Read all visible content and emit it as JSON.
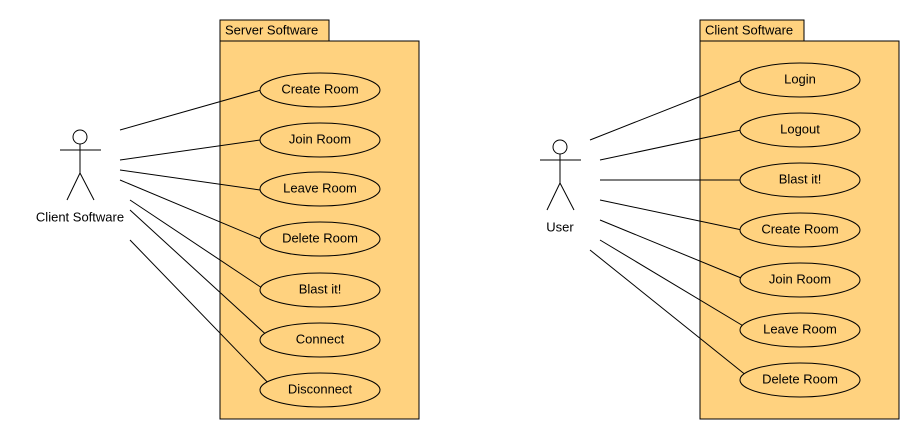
{
  "colors": {
    "boundary_fill": "#FFD27F",
    "usecase_fill": "#FFD27F",
    "stroke": "#000000",
    "background": "#FFFFFF"
  },
  "left_diagram": {
    "system_title": "Server Software",
    "actor_label": "Client Software",
    "use_cases": [
      "Create Room",
      "Join Room",
      "Leave Room",
      "Delete Room",
      "Blast it!",
      "Connect",
      "Disconnect"
    ]
  },
  "right_diagram": {
    "system_title": "Client Software",
    "actor_label": "User",
    "use_cases": [
      "Login",
      "Logout",
      "Blast it!",
      "Create Room",
      "Join Room",
      "Leave Room",
      "Delete Room"
    ]
  }
}
